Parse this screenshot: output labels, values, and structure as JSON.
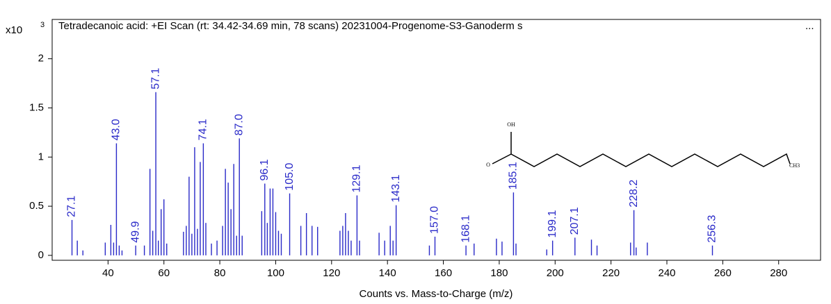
{
  "chart_data": {
    "type": "spectrum",
    "title": "Tetradecanoic acid: +EI Scan (rt: 34.42-34.69 min, 78 scans) 20231004-Progenome-S3-Ganoderm s",
    "title_more": "...",
    "y_multiplier": {
      "base": "x10",
      "exponent": "3"
    },
    "xlabel": "Counts vs. Mass-to-Charge (m/z)",
    "color": "#2929c8",
    "xlim": [
      20,
      295
    ],
    "ylim": [
      -0.05,
      2.4
    ],
    "xticks": [
      40,
      60,
      80,
      100,
      120,
      140,
      160,
      180,
      200,
      220,
      240,
      260,
      280
    ],
    "yticks": [
      0,
      0.5,
      1,
      1.5,
      2
    ],
    "x": [
      27.1,
      29,
      31,
      39,
      41,
      42,
      43.0,
      44,
      45,
      49.9,
      53,
      55,
      56,
      57.1,
      58,
      59,
      60,
      61,
      67,
      68,
      69,
      70,
      71,
      72,
      73,
      74.1,
      75,
      77,
      79,
      81,
      82,
      83,
      84,
      85,
      86,
      87.0,
      88,
      95,
      96.1,
      97,
      98,
      99,
      100,
      101,
      102,
      105.0,
      109,
      111,
      113,
      115,
      123,
      124,
      125,
      126,
      127,
      129.1,
      130,
      137,
      139,
      141,
      142,
      143.1,
      155,
      157.0,
      168.1,
      171,
      179,
      181,
      185.1,
      186,
      197,
      199.1,
      207.1,
      213,
      215,
      227,
      228.2,
      229,
      233,
      256.3
    ],
    "values": [
      0.36,
      0.15,
      0.05,
      0.13,
      0.31,
      0.13,
      1.14,
      0.1,
      0.05,
      0.1,
      0.1,
      0.88,
      0.25,
      1.66,
      0.15,
      0.47,
      0.57,
      0.12,
      0.24,
      0.3,
      0.8,
      0.22,
      1.1,
      0.27,
      0.95,
      1.14,
      0.33,
      0.12,
      0.15,
      0.3,
      0.88,
      0.74,
      0.47,
      0.93,
      0.2,
      1.19,
      0.2,
      0.45,
      0.73,
      0.33,
      0.68,
      0.68,
      0.44,
      0.25,
      0.22,
      0.63,
      0.3,
      0.43,
      0.3,
      0.29,
      0.25,
      0.3,
      0.43,
      0.25,
      0.15,
      0.61,
      0.15,
      0.23,
      0.15,
      0.3,
      0.15,
      0.51,
      0.1,
      0.19,
      0.1,
      0.12,
      0.17,
      0.14,
      0.64,
      0.12,
      0.06,
      0.15,
      0.18,
      0.16,
      0.1,
      0.13,
      0.46,
      0.08,
      0.13,
      0.1
    ],
    "peak_labels": [
      "27.1",
      null,
      null,
      null,
      null,
      null,
      "43.0",
      null,
      null,
      "49.9",
      null,
      null,
      null,
      "57.1",
      null,
      null,
      null,
      null,
      null,
      null,
      null,
      null,
      null,
      null,
      null,
      "74.1",
      null,
      null,
      null,
      null,
      null,
      null,
      null,
      null,
      null,
      "87.0",
      null,
      null,
      "96.1",
      null,
      null,
      null,
      null,
      null,
      null,
      "105.0",
      null,
      null,
      null,
      null,
      null,
      null,
      null,
      null,
      null,
      "129.1",
      null,
      null,
      null,
      null,
      null,
      "143.1",
      null,
      "157.0",
      "168.1",
      null,
      null,
      null,
      "185.1",
      null,
      null,
      "199.1",
      "207.1",
      null,
      null,
      null,
      "228.2",
      null,
      null,
      "256.3"
    ],
    "structure_labels": [
      "OH",
      "O",
      "CH3"
    ]
  }
}
